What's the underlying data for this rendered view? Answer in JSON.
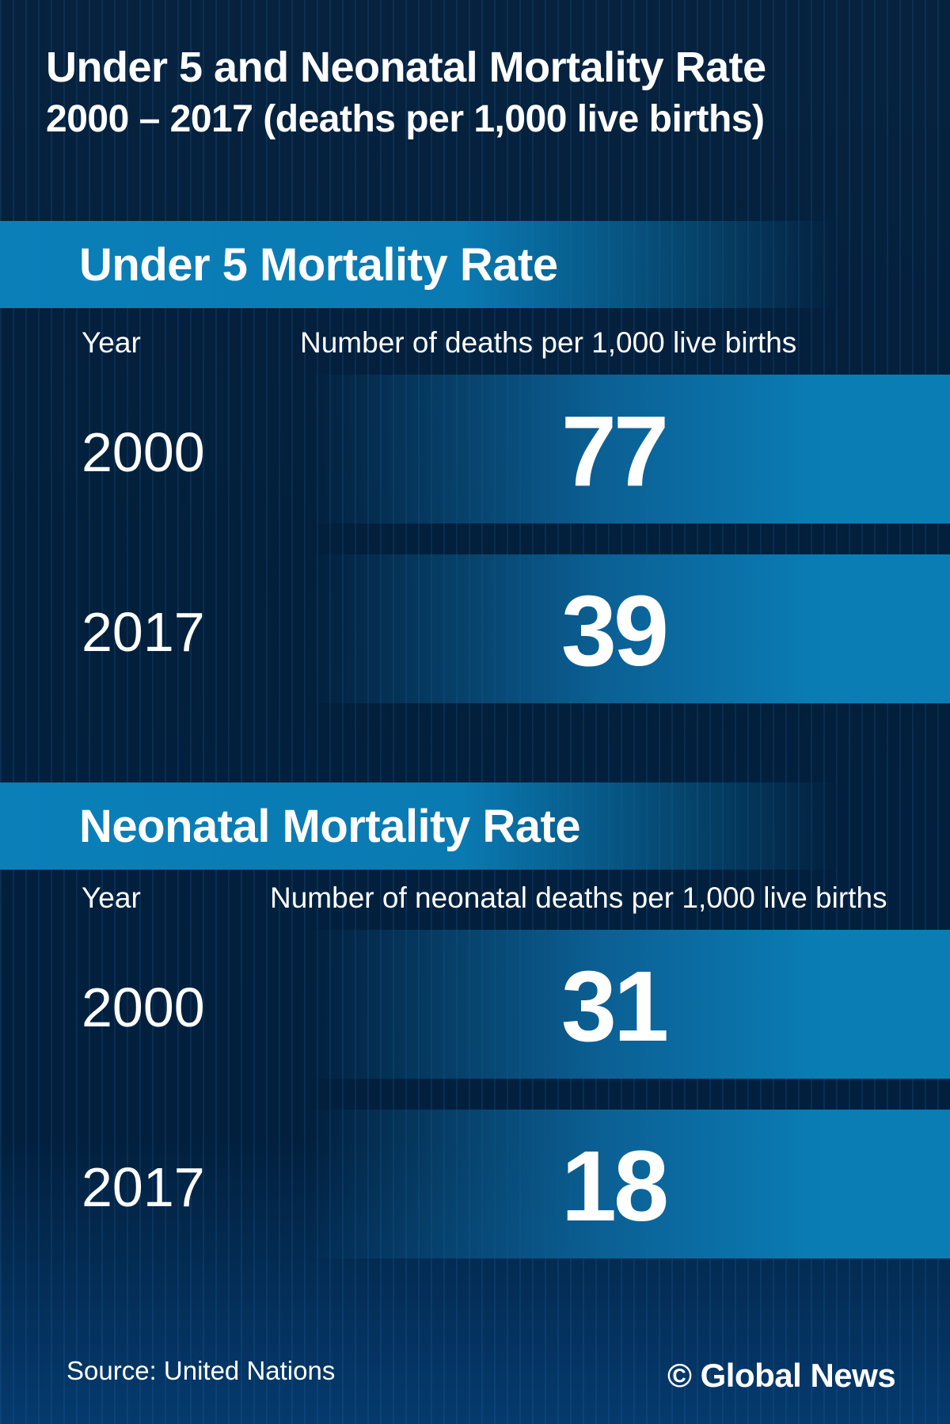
{
  "title": "Under 5 and Neonatal Mortality Rate",
  "subtitle": "2000 – 2017 (deaths per 1,000 live births)",
  "sections": [
    {
      "heading": "Under 5 Mortality Rate",
      "year_label": "Year",
      "value_label": "Number of deaths per 1,000 live births",
      "rows": [
        {
          "year": "2000",
          "value": "77"
        },
        {
          "year": "2017",
          "value": "39"
        }
      ]
    },
    {
      "heading": "Neonatal Mortality Rate",
      "year_label": "Year",
      "value_label": "Number of neonatal deaths per 1,000 live births",
      "rows": [
        {
          "year": "2000",
          "value": "31"
        },
        {
          "year": "2017",
          "value": "18"
        }
      ]
    }
  ],
  "source": "Source: United Nations",
  "brand": "© Global News",
  "colors": {
    "background": "#02203e",
    "accent": "#0a7db5"
  },
  "chart_data": {
    "type": "table",
    "title": "Under 5 and Neonatal Mortality Rate",
    "subtitle": "2000 – 2017 (deaths per 1,000 live births)",
    "categories": [
      "2000",
      "2017"
    ],
    "series": [
      {
        "name": "Under 5 Mortality Rate",
        "values": [
          77,
          39
        ]
      },
      {
        "name": "Neonatal Mortality Rate",
        "values": [
          31,
          18
        ]
      }
    ]
  }
}
